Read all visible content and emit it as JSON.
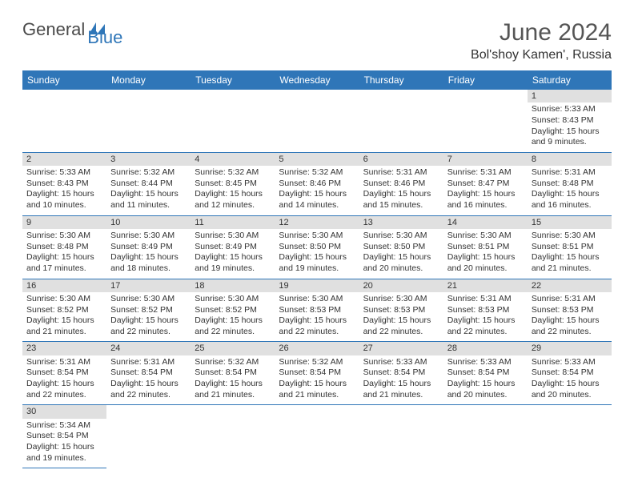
{
  "logo": {
    "part1": "General",
    "part2": "Blue"
  },
  "title": "June 2024",
  "location": "Bol'shoy Kamen', Russia",
  "colors": {
    "header_bg": "#2f76b8",
    "header_text": "#ffffff",
    "daynum_bg": "#e0e0e0",
    "border": "#2f76b8",
    "logo_gray": "#4a4a4a",
    "logo_blue": "#2f76b8"
  },
  "weekdays": [
    "Sunday",
    "Monday",
    "Tuesday",
    "Wednesday",
    "Thursday",
    "Friday",
    "Saturday"
  ],
  "weeks": [
    [
      null,
      null,
      null,
      null,
      null,
      null,
      {
        "d": "1",
        "sr": "Sunrise: 5:33 AM",
        "ss": "Sunset: 8:43 PM",
        "dl1": "Daylight: 15 hours",
        "dl2": "and 9 minutes."
      }
    ],
    [
      {
        "d": "2",
        "sr": "Sunrise: 5:33 AM",
        "ss": "Sunset: 8:43 PM",
        "dl1": "Daylight: 15 hours",
        "dl2": "and 10 minutes."
      },
      {
        "d": "3",
        "sr": "Sunrise: 5:32 AM",
        "ss": "Sunset: 8:44 PM",
        "dl1": "Daylight: 15 hours",
        "dl2": "and 11 minutes."
      },
      {
        "d": "4",
        "sr": "Sunrise: 5:32 AM",
        "ss": "Sunset: 8:45 PM",
        "dl1": "Daylight: 15 hours",
        "dl2": "and 12 minutes."
      },
      {
        "d": "5",
        "sr": "Sunrise: 5:32 AM",
        "ss": "Sunset: 8:46 PM",
        "dl1": "Daylight: 15 hours",
        "dl2": "and 14 minutes."
      },
      {
        "d": "6",
        "sr": "Sunrise: 5:31 AM",
        "ss": "Sunset: 8:46 PM",
        "dl1": "Daylight: 15 hours",
        "dl2": "and 15 minutes."
      },
      {
        "d": "7",
        "sr": "Sunrise: 5:31 AM",
        "ss": "Sunset: 8:47 PM",
        "dl1": "Daylight: 15 hours",
        "dl2": "and 16 minutes."
      },
      {
        "d": "8",
        "sr": "Sunrise: 5:31 AM",
        "ss": "Sunset: 8:48 PM",
        "dl1": "Daylight: 15 hours",
        "dl2": "and 16 minutes."
      }
    ],
    [
      {
        "d": "9",
        "sr": "Sunrise: 5:30 AM",
        "ss": "Sunset: 8:48 PM",
        "dl1": "Daylight: 15 hours",
        "dl2": "and 17 minutes."
      },
      {
        "d": "10",
        "sr": "Sunrise: 5:30 AM",
        "ss": "Sunset: 8:49 PM",
        "dl1": "Daylight: 15 hours",
        "dl2": "and 18 minutes."
      },
      {
        "d": "11",
        "sr": "Sunrise: 5:30 AM",
        "ss": "Sunset: 8:49 PM",
        "dl1": "Daylight: 15 hours",
        "dl2": "and 19 minutes."
      },
      {
        "d": "12",
        "sr": "Sunrise: 5:30 AM",
        "ss": "Sunset: 8:50 PM",
        "dl1": "Daylight: 15 hours",
        "dl2": "and 19 minutes."
      },
      {
        "d": "13",
        "sr": "Sunrise: 5:30 AM",
        "ss": "Sunset: 8:50 PM",
        "dl1": "Daylight: 15 hours",
        "dl2": "and 20 minutes."
      },
      {
        "d": "14",
        "sr": "Sunrise: 5:30 AM",
        "ss": "Sunset: 8:51 PM",
        "dl1": "Daylight: 15 hours",
        "dl2": "and 20 minutes."
      },
      {
        "d": "15",
        "sr": "Sunrise: 5:30 AM",
        "ss": "Sunset: 8:51 PM",
        "dl1": "Daylight: 15 hours",
        "dl2": "and 21 minutes."
      }
    ],
    [
      {
        "d": "16",
        "sr": "Sunrise: 5:30 AM",
        "ss": "Sunset: 8:52 PM",
        "dl1": "Daylight: 15 hours",
        "dl2": "and 21 minutes."
      },
      {
        "d": "17",
        "sr": "Sunrise: 5:30 AM",
        "ss": "Sunset: 8:52 PM",
        "dl1": "Daylight: 15 hours",
        "dl2": "and 22 minutes."
      },
      {
        "d": "18",
        "sr": "Sunrise: 5:30 AM",
        "ss": "Sunset: 8:52 PM",
        "dl1": "Daylight: 15 hours",
        "dl2": "and 22 minutes."
      },
      {
        "d": "19",
        "sr": "Sunrise: 5:30 AM",
        "ss": "Sunset: 8:53 PM",
        "dl1": "Daylight: 15 hours",
        "dl2": "and 22 minutes."
      },
      {
        "d": "20",
        "sr": "Sunrise: 5:30 AM",
        "ss": "Sunset: 8:53 PM",
        "dl1": "Daylight: 15 hours",
        "dl2": "and 22 minutes."
      },
      {
        "d": "21",
        "sr": "Sunrise: 5:31 AM",
        "ss": "Sunset: 8:53 PM",
        "dl1": "Daylight: 15 hours",
        "dl2": "and 22 minutes."
      },
      {
        "d": "22",
        "sr": "Sunrise: 5:31 AM",
        "ss": "Sunset: 8:53 PM",
        "dl1": "Daylight: 15 hours",
        "dl2": "and 22 minutes."
      }
    ],
    [
      {
        "d": "23",
        "sr": "Sunrise: 5:31 AM",
        "ss": "Sunset: 8:54 PM",
        "dl1": "Daylight: 15 hours",
        "dl2": "and 22 minutes."
      },
      {
        "d": "24",
        "sr": "Sunrise: 5:31 AM",
        "ss": "Sunset: 8:54 PM",
        "dl1": "Daylight: 15 hours",
        "dl2": "and 22 minutes."
      },
      {
        "d": "25",
        "sr": "Sunrise: 5:32 AM",
        "ss": "Sunset: 8:54 PM",
        "dl1": "Daylight: 15 hours",
        "dl2": "and 21 minutes."
      },
      {
        "d": "26",
        "sr": "Sunrise: 5:32 AM",
        "ss": "Sunset: 8:54 PM",
        "dl1": "Daylight: 15 hours",
        "dl2": "and 21 minutes."
      },
      {
        "d": "27",
        "sr": "Sunrise: 5:33 AM",
        "ss": "Sunset: 8:54 PM",
        "dl1": "Daylight: 15 hours",
        "dl2": "and 21 minutes."
      },
      {
        "d": "28",
        "sr": "Sunrise: 5:33 AM",
        "ss": "Sunset: 8:54 PM",
        "dl1": "Daylight: 15 hours",
        "dl2": "and 20 minutes."
      },
      {
        "d": "29",
        "sr": "Sunrise: 5:33 AM",
        "ss": "Sunset: 8:54 PM",
        "dl1": "Daylight: 15 hours",
        "dl2": "and 20 minutes."
      }
    ],
    [
      {
        "d": "30",
        "sr": "Sunrise: 5:34 AM",
        "ss": "Sunset: 8:54 PM",
        "dl1": "Daylight: 15 hours",
        "dl2": "and 19 minutes."
      },
      null,
      null,
      null,
      null,
      null,
      null
    ]
  ]
}
